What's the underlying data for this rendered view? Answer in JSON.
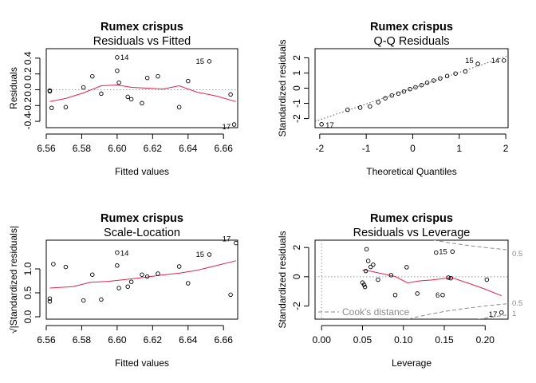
{
  "chart_data": [
    {
      "type": "scatter",
      "title": "Rumex crispus",
      "subtitle": "Residuals vs Fitted",
      "xlabel": "Fitted values",
      "ylabel": "Residuals",
      "xlim": [
        6.56,
        6.668
      ],
      "ylim": [
        -0.48,
        0.52
      ],
      "xticks": [
        "6.56",
        "6.58",
        "6.60",
        "6.62",
        "6.64",
        "6.66"
      ],
      "yticks": [
        "-0.4",
        "-0.2",
        "0.0",
        "0.2",
        "0.4"
      ],
      "reference_line": 0,
      "points": {
        "x": [
          6.562,
          6.562,
          6.563,
          6.571,
          6.581,
          6.586,
          6.591,
          6.6,
          6.6,
          6.601,
          6.606,
          6.608,
          6.614,
          6.617,
          6.623,
          6.635,
          6.64,
          6.652,
          6.664,
          6.666
        ],
        "y": [
          -0.01,
          -0.02,
          -0.23,
          -0.22,
          0.03,
          0.17,
          -0.05,
          0.41,
          0.24,
          0.09,
          -0.09,
          -0.12,
          -0.17,
          0.15,
          0.17,
          -0.22,
          0.11,
          0.36,
          -0.06,
          -0.44
        ]
      },
      "labels": [
        {
          "text": "14",
          "index": 7
        },
        {
          "text": "15",
          "index": 17
        },
        {
          "text": "17",
          "index": 19
        }
      ],
      "smooth": {
        "x": [
          6.562,
          6.571,
          6.581,
          6.591,
          6.6,
          6.608,
          6.617,
          6.626,
          6.635,
          6.645,
          6.656,
          6.667
        ],
        "y": [
          -0.15,
          -0.11,
          -0.04,
          0.05,
          0.06,
          0.03,
          0.02,
          0.01,
          0.05,
          -0.03,
          -0.08,
          -0.15
        ]
      }
    },
    {
      "type": "scatter",
      "title": "Rumex crispus",
      "subtitle": "Q-Q Residuals",
      "xlabel": "Theoretical Quantiles",
      "ylabel": "Standardized residuals",
      "xlim": [
        -2.1,
        2.05
      ],
      "ylim": [
        -2.6,
        2.6
      ],
      "xticks": [
        "-2",
        "-1",
        "0",
        "1",
        "2"
      ],
      "yticks": [
        "-2",
        "-1",
        "0",
        "1",
        "2"
      ],
      "reference_line": {
        "intercept": 0,
        "slope": 1.04
      },
      "points": {
        "x": [
          -1.96,
          -1.4,
          -1.13,
          -0.92,
          -0.74,
          -0.59,
          -0.45,
          -0.31,
          -0.19,
          -0.06,
          0.06,
          0.19,
          0.31,
          0.45,
          0.59,
          0.74,
          0.92,
          1.13,
          1.4,
          1.96
        ],
        "y": [
          -2.38,
          -1.42,
          -1.28,
          -1.2,
          -0.92,
          -0.66,
          -0.48,
          -0.36,
          -0.22,
          -0.06,
          0.06,
          0.2,
          0.36,
          0.5,
          0.64,
          0.8,
          0.96,
          1.1,
          1.6,
          1.82
        ]
      },
      "labels": [
        {
          "text": "17",
          "index": 0
        },
        {
          "text": "15",
          "index": 18
        },
        {
          "text": "14",
          "index": 19
        }
      ]
    },
    {
      "type": "scatter",
      "title": "Rumex crispus",
      "subtitle": "Scale-Location",
      "xlabel": "Fitted values",
      "ylabel": "√|Standardized residuals|",
      "xlim": [
        6.56,
        6.668
      ],
      "ylim": [
        -0.05,
        1.6
      ],
      "xticks": [
        "6.56",
        "6.58",
        "6.60",
        "6.62",
        "6.64",
        "6.66"
      ],
      "yticks": [
        "0.0",
        "0.5",
        "1.0"
      ],
      "points": {
        "x": [
          6.562,
          6.562,
          6.564,
          6.571,
          6.581,
          6.586,
          6.591,
          6.6,
          6.6,
          6.601,
          6.606,
          6.608,
          6.614,
          6.617,
          6.623,
          6.635,
          6.64,
          6.652,
          6.664,
          6.667
        ],
        "y": [
          0.38,
          0.32,
          1.1,
          1.04,
          0.34,
          0.88,
          0.36,
          1.34,
          1.07,
          0.6,
          0.63,
          0.73,
          0.88,
          0.84,
          0.9,
          1.05,
          0.7,
          1.3,
          0.46,
          1.54
        ]
      },
      "labels": [
        {
          "text": "14",
          "index": 7
        },
        {
          "text": "15",
          "index": 17
        },
        {
          "text": "17",
          "index": 19
        }
      ],
      "smooth": {
        "x": [
          6.562,
          6.575,
          6.585,
          6.595,
          6.605,
          6.615,
          6.625,
          6.635,
          6.645,
          6.655,
          6.667
        ],
        "y": [
          0.6,
          0.63,
          0.72,
          0.74,
          0.78,
          0.82,
          0.87,
          0.91,
          0.97,
          1.06,
          1.17
        ]
      }
    },
    {
      "type": "scatter",
      "title": "Rumex crispus",
      "subtitle": "Residuals vs Leverage",
      "xlabel": "Leverage",
      "ylabel": "Standardized residuals",
      "xlim": [
        -0.008,
        0.228
      ],
      "ylim": [
        -2.9,
        2.5
      ],
      "xticks": [
        "0.00",
        "0.05",
        "0.10",
        "0.15",
        "0.20"
      ],
      "yticks": [
        "-2",
        "0",
        "2"
      ],
      "reference_line": 0,
      "points": {
        "x": [
          0.05,
          0.052,
          0.053,
          0.054,
          0.055,
          0.057,
          0.06,
          0.063,
          0.069,
          0.085,
          0.09,
          0.104,
          0.117,
          0.14,
          0.148,
          0.155,
          0.158,
          0.16,
          0.202,
          0.22
        ],
        "y": [
          -0.4,
          -0.55,
          -0.7,
          0.39,
          1.88,
          1.08,
          0.67,
          0.82,
          -0.2,
          0.11,
          -1.25,
          0.65,
          -1.15,
          1.65,
          -1.25,
          -0.06,
          -0.1,
          1.72,
          -0.2,
          -2.45
        ]
      },
      "labels": [
        {
          "text": "15",
          "index": 17
        },
        {
          "text": "6",
          "index": 14
        },
        {
          "text": "17",
          "index": 19
        }
      ],
      "smooth": {
        "x": [
          0.05,
          0.06,
          0.075,
          0.09,
          0.105,
          0.12,
          0.135,
          0.15,
          0.16,
          0.18,
          0.2,
          0.22
        ],
        "y": [
          0.45,
          0.38,
          0.2,
          0.02,
          -0.42,
          -0.28,
          -0.22,
          -0.12,
          -0.08,
          -0.45,
          -0.85,
          -1.3
        ]
      },
      "cooks_distance": {
        "legend": "Cook's distance",
        "contours": [
          "0.5",
          "1"
        ]
      }
    }
  ]
}
